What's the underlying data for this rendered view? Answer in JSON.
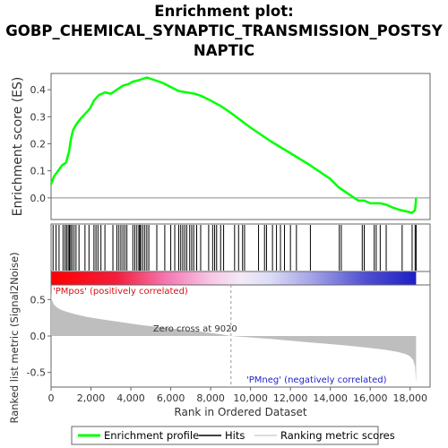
{
  "title_lines": [
    "Enrichment plot:",
    "GOBP_CHEMICAL_SYNAPTIC_TRANSMISSION_POSTSY",
    "NAPTIC"
  ],
  "chart_data": {
    "type": "line",
    "title": "Enrichment plot: GOBP_CHEMICAL_SYNAPTIC_TRANSMISSION_POSTSYNAPTIC",
    "xlabel": "Rank in Ordered Dataset",
    "xlim": [
      0,
      19000
    ],
    "x_ticks": [
      0,
      2000,
      4000,
      6000,
      8000,
      10000,
      12000,
      14000,
      16000,
      18000
    ],
    "x_tick_labels": [
      "0",
      "2,000",
      "4,000",
      "6,000",
      "8,000",
      "10,000",
      "12,000",
      "14,000",
      "16,000",
      "18,000"
    ],
    "es_panel": {
      "ylabel": "Enrichment score (ES)",
      "ylim": [
        -0.08,
        0.46
      ],
      "y_ticks": [
        0.0,
        0.1,
        0.2,
        0.3,
        0.4
      ],
      "y_tick_labels": [
        "0.0",
        "0.1",
        "0.2",
        "0.3",
        "0.4"
      ],
      "color": "#00ff00",
      "series": [
        {
          "name": "Enrichment profile",
          "x": [
            0,
            150,
            350,
            550,
            750,
            900,
            1000,
            1100,
            1250,
            1450,
            1700,
            1950,
            2150,
            2400,
            2700,
            3000,
            3300,
            3600,
            3850,
            4100,
            4400,
            4600,
            4800,
            5200,
            5600,
            6000,
            6400,
            6800,
            7200,
            7600,
            8000,
            8500,
            9000,
            10000,
            11000,
            12000,
            13000,
            14000,
            14400,
            14600,
            15000,
            15400,
            15700,
            16000,
            16300,
            16500,
            16800,
            17100,
            17500,
            17800,
            18100,
            18250,
            18300
          ],
          "y": [
            0.05,
            0.08,
            0.1,
            0.12,
            0.13,
            0.17,
            0.22,
            0.25,
            0.27,
            0.29,
            0.31,
            0.33,
            0.36,
            0.38,
            0.39,
            0.385,
            0.4,
            0.415,
            0.42,
            0.43,
            0.435,
            0.44,
            0.445,
            0.435,
            0.425,
            0.41,
            0.395,
            0.39,
            0.385,
            0.375,
            0.36,
            0.34,
            0.315,
            0.26,
            0.21,
            0.165,
            0.12,
            0.07,
            0.04,
            0.03,
            0.01,
            -0.01,
            -0.01,
            -0.02,
            -0.02,
            -0.02,
            -0.025,
            -0.035,
            -0.045,
            -0.05,
            -0.055,
            -0.045,
            0.0
          ]
        }
      ]
    },
    "hits": [
      100,
      250,
      400,
      600,
      700,
      780,
      860,
      920,
      980,
      1050,
      1150,
      1250,
      1400,
      1700,
      1900,
      2150,
      2250,
      2350,
      2500,
      2700,
      3100,
      3300,
      3400,
      3500,
      3600,
      3700,
      3800,
      4100,
      4200,
      4300,
      4400,
      4450,
      4500,
      4600,
      4700,
      4800,
      4900,
      5300,
      5700,
      6000,
      6200,
      6400,
      6500,
      6600,
      6700,
      6800,
      6950,
      7050,
      7150,
      7300,
      7500,
      7900,
      8100,
      8200,
      8300,
      8500,
      8650,
      9200,
      9400,
      9600,
      9700,
      10400,
      10700,
      10800,
      11100,
      11300,
      11500,
      11700,
      12000,
      12300,
      13000,
      14450,
      14550,
      15600,
      15700,
      16200,
      16300,
      16500,
      16800,
      17600,
      18100,
      18250,
      18300
    ],
    "heatmap_labels": {
      "pos": "'PMpos' (positively correlated)",
      "neg": "'PMneg' (negatively correlated)"
    },
    "metric_panel": {
      "ylabel": "Ranked list metric (Signal2Noise)",
      "ylim": [
        -0.7,
        0.7
      ],
      "y_ticks": [
        -0.5,
        0.0,
        0.5
      ],
      "y_tick_labels": [
        "-0.5",
        "0.0",
        "0.5"
      ],
      "fill_color": "#bebebe",
      "x": [
        0,
        30,
        80,
        150,
        300,
        500,
        800,
        1200,
        1800,
        2500,
        3500,
        4500,
        5500,
        6500,
        7500,
        8500,
        9020,
        10000,
        11000,
        12000,
        13000,
        14000,
        15000,
        16000,
        16800,
        17400,
        17800,
        18000,
        18150,
        18250,
        18300
      ],
      "y": [
        0.6,
        0.5,
        0.47,
        0.43,
        0.39,
        0.36,
        0.33,
        0.3,
        0.26,
        0.23,
        0.19,
        0.15,
        0.12,
        0.09,
        0.06,
        0.025,
        0.0,
        -0.02,
        -0.04,
        -0.065,
        -0.09,
        -0.11,
        -0.135,
        -0.165,
        -0.19,
        -0.22,
        -0.25,
        -0.28,
        -0.33,
        -0.42,
        -0.65
      ],
      "zero_cross_label": "Zero cross at 9020",
      "zero_cross": 9020
    },
    "legend": {
      "placement": "bottom",
      "items": [
        {
          "label": "Enrichment profile",
          "color": "#00ff00"
        },
        {
          "label": "Hits",
          "color": "#000000"
        },
        {
          "label": "Ranking metric scores",
          "color": "#d0d0d0"
        }
      ]
    }
  }
}
